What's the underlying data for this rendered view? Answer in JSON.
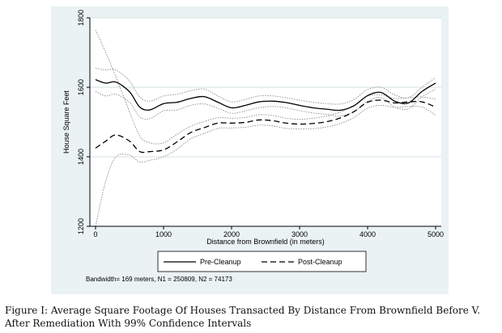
{
  "chart_data": {
    "type": "line",
    "xlabel": "Distance from Brownfield (in meters)",
    "ylabel": "House Square Feet",
    "xlim": [
      0,
      5000
    ],
    "ylim": [
      1200,
      1800
    ],
    "xticks": [
      "0",
      "1000",
      "2000",
      "3000",
      "4000",
      "5000"
    ],
    "yticks": [
      "1200",
      "1400",
      "1600",
      "1800"
    ],
    "grid": "horizontal",
    "legend_position": "bottom",
    "note": "Bandwidth= 169 meters, N1 = 250809, N2 = 74173",
    "x": [
      0,
      150,
      300,
      500,
      650,
      800,
      1000,
      1200,
      1400,
      1600,
      1800,
      2000,
      2200,
      2400,
      2600,
      2800,
      3000,
      3200,
      3400,
      3600,
      3800,
      4000,
      4200,
      4400,
      4600,
      4800,
      5000
    ],
    "series": [
      {
        "name": "Pre-Cleanup",
        "style": "solid",
        "values": [
          1622,
          1612,
          1615,
          1587,
          1543,
          1535,
          1553,
          1557,
          1568,
          1573,
          1557,
          1541,
          1548,
          1558,
          1560,
          1556,
          1548,
          1541,
          1537,
          1534,
          1547,
          1576,
          1585,
          1560,
          1555,
          1588,
          1612
        ]
      },
      {
        "name": "Post-Cleanup",
        "style": "dashed",
        "values": [
          1425,
          1445,
          1463,
          1445,
          1415,
          1415,
          1420,
          1443,
          1470,
          1484,
          1497,
          1497,
          1499,
          1506,
          1504,
          1497,
          1494,
          1496,
          1501,
          1512,
          1530,
          1557,
          1563,
          1555,
          1558,
          1558,
          1543
        ]
      },
      {
        "name": "Pre-Cleanup upper 99% CI",
        "style": "dotted",
        "values": [
          1655,
          1650,
          1650,
          1618,
          1572,
          1560,
          1575,
          1580,
          1590,
          1595,
          1575,
          1558,
          1565,
          1575,
          1575,
          1570,
          1563,
          1557,
          1553,
          1552,
          1565,
          1593,
          1600,
          1578,
          1570,
          1600,
          1628
        ]
      },
      {
        "name": "Pre-Cleanup lower 99% CI",
        "style": "dotted",
        "values": [
          1588,
          1575,
          1580,
          1557,
          1515,
          1510,
          1532,
          1535,
          1548,
          1552,
          1540,
          1525,
          1532,
          1541,
          1545,
          1541,
          1533,
          1526,
          1522,
          1517,
          1530,
          1560,
          1570,
          1543,
          1538,
          1572,
          1595
        ]
      },
      {
        "name": "Post-Cleanup upper 99% CI",
        "style": "dotted",
        "values": [
          1765,
          1700,
          1630,
          1530,
          1460,
          1440,
          1440,
          1465,
          1488,
          1502,
          1512,
          1511,
          1513,
          1521,
          1519,
          1511,
          1508,
          1511,
          1517,
          1529,
          1548,
          1575,
          1578,
          1568,
          1570,
          1572,
          1566
        ]
      },
      {
        "name": "Post-Cleanup lower 99% CI",
        "style": "dotted",
        "values": [
          1200,
          1330,
          1400,
          1405,
          1385,
          1390,
          1400,
          1422,
          1452,
          1467,
          1482,
          1483,
          1485,
          1491,
          1489,
          1482,
          1480,
          1481,
          1486,
          1496,
          1513,
          1540,
          1548,
          1542,
          1545,
          1543,
          1520
        ]
      }
    ]
  },
  "caption": {
    "line1": "Figure I: Average Square Footage Of Houses Transacted By Distance From Brownfield Before V.",
    "line2": "After Remediation With 99% Confidence Intervals"
  }
}
